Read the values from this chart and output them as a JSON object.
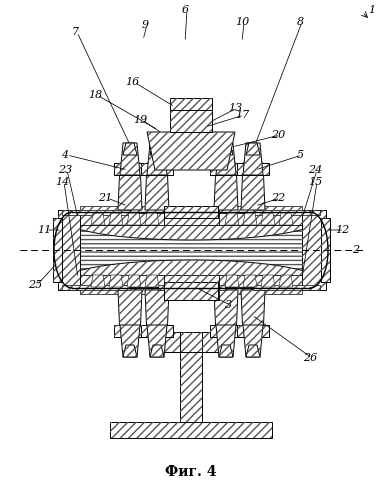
{
  "title": "Фиг. 4",
  "title_font": "DejaVu Serif",
  "title_fontsize": 10,
  "bg_color": "#ffffff"
}
